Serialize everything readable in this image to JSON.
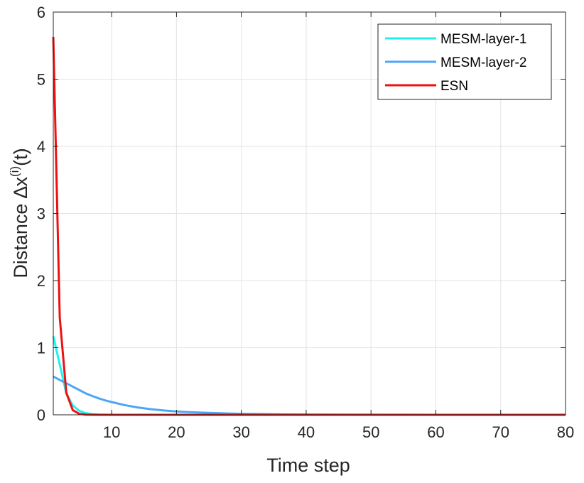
{
  "chart_data": {
    "type": "line",
    "title": "",
    "xlabel": "Time step",
    "ylabel": {
      "prefix": "Distance ",
      "delta": "∆x",
      "superscript": "(i)",
      "suffix": "(t)"
    },
    "xlim": [
      1,
      80
    ],
    "ylim": [
      0,
      6
    ],
    "xticks": [
      10,
      20,
      30,
      40,
      50,
      60,
      70,
      80
    ],
    "yticks": [
      0,
      1,
      2,
      3,
      4,
      5,
      6
    ],
    "grid": true,
    "legend_position": "top-right",
    "series": [
      {
        "name": "MESM-layer-1",
        "color": "#1ff2ee",
        "x": [
          1,
          2,
          3,
          4,
          5,
          6,
          7,
          8,
          10,
          15,
          20,
          30,
          40,
          50,
          60,
          70,
          80
        ],
        "y": [
          1.17,
          0.75,
          0.32,
          0.14,
          0.06,
          0.025,
          0.01,
          0.004,
          0,
          0,
          0,
          0,
          0,
          0,
          0,
          0,
          0
        ]
      },
      {
        "name": "MESM-layer-2",
        "color": "#4da6f5",
        "x": [
          1,
          2,
          3,
          4,
          5,
          6,
          7,
          8,
          9,
          10,
          12,
          14,
          16,
          18,
          20,
          22,
          25,
          28,
          30,
          35,
          40,
          45,
          50,
          60,
          70,
          80
        ],
        "y": [
          0.57,
          0.52,
          0.47,
          0.42,
          0.37,
          0.32,
          0.28,
          0.245,
          0.215,
          0.19,
          0.145,
          0.11,
          0.085,
          0.065,
          0.05,
          0.04,
          0.03,
          0.02,
          0.015,
          0.008,
          0.004,
          0.002,
          0.001,
          0,
          0,
          0
        ]
      },
      {
        "name": "ESN",
        "color": "#ee1111",
        "x": [
          1,
          2,
          3,
          4,
          5,
          6,
          7,
          8,
          10,
          20,
          30,
          40,
          50,
          60,
          70,
          80
        ],
        "y": [
          5.63,
          1.45,
          0.33,
          0.07,
          0.015,
          0.003,
          0.001,
          0,
          0,
          0,
          0,
          0,
          0,
          0,
          0,
          0
        ]
      }
    ]
  }
}
